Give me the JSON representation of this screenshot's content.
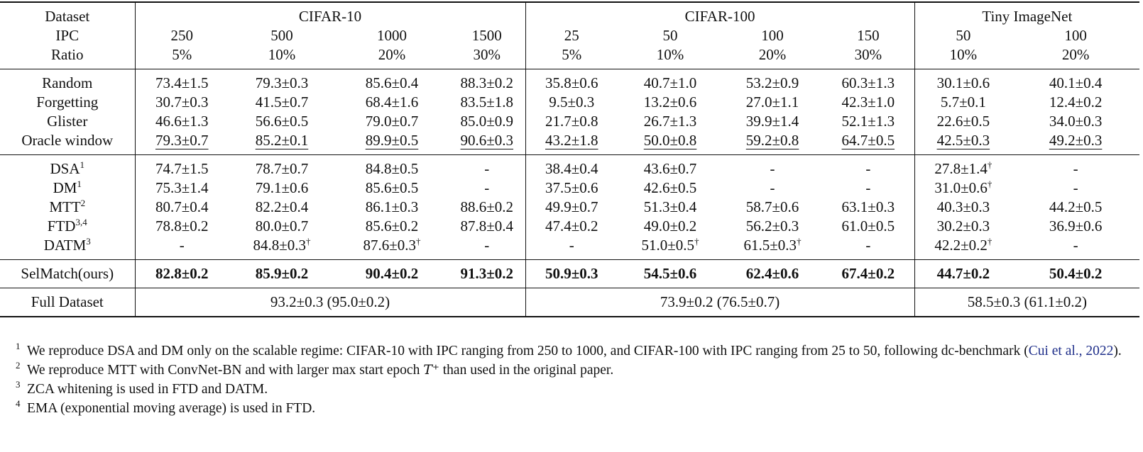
{
  "header": {
    "row_labels": [
      "Dataset",
      "IPC",
      "Ratio"
    ],
    "datasets": [
      "CIFAR-10",
      "CIFAR-100",
      "Tiny ImageNet"
    ],
    "ipc": [
      "250",
      "500",
      "1000",
      "1500",
      "25",
      "50",
      "100",
      "150",
      "50",
      "100"
    ],
    "ratio": [
      "5%",
      "10%",
      "20%",
      "30%",
      "5%",
      "10%",
      "20%",
      "30%",
      "10%",
      "20%"
    ]
  },
  "groups": [
    {
      "rows": [
        {
          "method": "Random",
          "cells": [
            "73.4±1.5",
            "79.3±0.3",
            "85.6±0.4",
            "88.3±0.2",
            "35.8±0.6",
            "40.7±1.0",
            "53.2±0.9",
            "60.3±1.3",
            "30.1±0.6",
            "40.1±0.4"
          ]
        },
        {
          "method": "Forgetting",
          "cells": [
            "30.7±0.3",
            "41.5±0.7",
            "68.4±1.6",
            "83.5±1.8",
            "9.5±0.3",
            "13.2±0.6",
            "27.0±1.1",
            "42.3±1.0",
            "5.7±0.1",
            "12.4±0.2"
          ]
        },
        {
          "method": "Glister",
          "cells": [
            "46.6±1.3",
            "56.6±0.5",
            "79.0±0.7",
            "85.0±0.9",
            "21.7±0.8",
            "26.7±1.3",
            "39.9±1.4",
            "52.1±1.3",
            "22.6±0.5",
            "34.0±0.3"
          ]
        },
        {
          "method": "Oracle window",
          "cells": [
            "79.3±0.7",
            "85.2±0.1",
            "89.9±0.5",
            "90.6±0.3",
            "43.2±1.8",
            "50.0±0.8",
            "59.2±0.8",
            "64.7±0.5",
            "42.5±0.3",
            "49.2±0.3"
          ]
        }
      ]
    },
    {
      "rows": [
        {
          "method": "DSA",
          "sup": "1",
          "cells": [
            "74.7±1.5",
            "78.7±0.7",
            "84.8±0.5",
            "-",
            "38.4±0.4",
            "43.6±0.7",
            "-",
            "-",
            "27.8±1.4",
            "-"
          ]
        },
        {
          "method": "DM",
          "sup": "1",
          "cells": [
            "75.3±1.4",
            "79.1±0.6",
            "85.6±0.5",
            "-",
            "37.5±0.6",
            "42.6±0.5",
            "-",
            "-",
            "31.0±0.6",
            "-"
          ]
        },
        {
          "method": "MTT",
          "sup": "2",
          "cells": [
            "80.7±0.4",
            "82.2±0.4",
            "86.1±0.3",
            "88.6±0.2",
            "49.9±0.7",
            "51.3±0.4",
            "58.7±0.6",
            "63.1±0.3",
            "40.3±0.3",
            "44.2±0.5"
          ]
        },
        {
          "method": "FTD",
          "sup": "3,4",
          "cells": [
            "78.8±0.2",
            "80.0±0.7",
            "85.6±0.2",
            "87.8±0.4",
            "47.4±0.2",
            "49.0±0.2",
            "56.2±0.3",
            "61.0±0.5",
            "30.2±0.3",
            "36.9±0.6"
          ]
        },
        {
          "method": "DATM",
          "sup": "3",
          "cells": [
            "-",
            "84.8±0.3",
            "87.6±0.3",
            "-",
            "-",
            "51.0±0.5",
            "61.5±0.3",
            "-",
            "42.2±0.2",
            "-"
          ]
        }
      ]
    }
  ],
  "dagger": "†",
  "selmatch": {
    "method": "SelMatch(ours)",
    "cells": [
      "82.8±0.2",
      "85.9±0.2",
      "90.4±0.2",
      "91.3±0.2",
      "50.9±0.3",
      "54.5±0.6",
      "62.4±0.6",
      "67.4±0.2",
      "44.7±0.2",
      "50.4±0.2"
    ]
  },
  "full": {
    "method": "Full Dataset",
    "cells": [
      "93.2±0.3 (95.0±0.2)",
      "73.9±0.2 (76.5±0.7)",
      "58.5±0.3 (61.1±0.2)"
    ]
  },
  "notes": {
    "n1": {
      "mark": "1",
      "text": "We reproduce DSA and DM only on the scalable regime: CIFAR-10 with IPC ranging from 250 to 1000, and CIFAR-100 with IPC ranging from 25 to 50, following dc-benchmark",
      "cite_open": " (",
      "cite": "Cui et al., 2022",
      "cite_close": ")."
    },
    "n2": {
      "mark": "2",
      "text_a": "We reproduce MTT with ConvNet-BN and with larger max start epoch ",
      "math": "T⁺",
      "text_b": " than used in the original paper."
    },
    "n3": {
      "mark": "3",
      "text": "ZCA whitening is used in FTD and DATM."
    },
    "n4": {
      "mark": "4",
      "text": "EMA (exponential moving average) is used in FTD."
    }
  }
}
